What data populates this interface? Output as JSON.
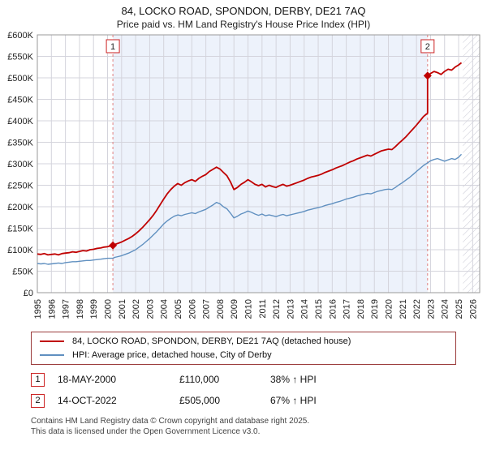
{
  "title": "84, LOCKO ROAD, SPONDON, DERBY, DE21 7AQ",
  "subtitle": "Price paid vs. HM Land Registry's House Price Index (HPI)",
  "colors": {
    "property": "#c00000",
    "hpi": "#6090c0",
    "marker_box_border": "#cc2222",
    "legend_border": "#9a3b3b",
    "shade": "#edf2fb",
    "grid": "#d4d4dc"
  },
  "legend": [
    {
      "label": "84, LOCKO ROAD, SPONDON, DERBY, DE21 7AQ (detached house)"
    },
    {
      "label": "HPI: Average price, detached house, City of Derby"
    }
  ],
  "transactions": [
    {
      "num": "1",
      "date": "18-MAY-2000",
      "price": "£110,000",
      "hpi": "38% ↑ HPI"
    },
    {
      "num": "2",
      "date": "14-OCT-2022",
      "price": "£505,000",
      "hpi": "67% ↑ HPI"
    }
  ],
  "footer": {
    "line1": "Contains HM Land Registry data © Crown copyright and database right 2025.",
    "line2": "This data is licensed under the Open Government Licence v3.0."
  },
  "chart_data": {
    "type": "line",
    "title": "84, LOCKO ROAD, SPONDON, DERBY, DE21 7AQ",
    "units": "GBP thousands",
    "xlim": [
      1995,
      2026.5
    ],
    "ylim": [
      0,
      600
    ],
    "grid": true,
    "legend_position": "bottom",
    "x_ticks": [
      "1995",
      "1996",
      "1997",
      "1998",
      "1999",
      "2000",
      "2001",
      "2002",
      "2003",
      "2004",
      "2005",
      "2006",
      "2007",
      "2008",
      "2009",
      "2010",
      "2011",
      "2012",
      "2013",
      "2014",
      "2015",
      "2016",
      "2017",
      "2018",
      "2019",
      "2020",
      "2021",
      "2022",
      "2023",
      "2024",
      "2025",
      "2026"
    ],
    "y_tick_values": [
      0,
      50,
      100,
      150,
      200,
      250,
      300,
      350,
      400,
      450,
      500,
      550,
      600
    ],
    "y_tick_labels": [
      "£0",
      "£50K",
      "£100K",
      "£150K",
      "£200K",
      "£250K",
      "£300K",
      "£350K",
      "£400K",
      "£450K",
      "£500K",
      "£550K",
      "£600K"
    ],
    "shaded_region": {
      "from": 2000.38,
      "to": 2022.79,
      "color": "#edf2fb"
    },
    "hatched_region": {
      "from": 2025.3,
      "to": 2026.5
    },
    "markers": [
      {
        "label": "1",
        "x": 2000.38,
        "y": 110
      },
      {
        "label": "2",
        "x": 2022.79,
        "y": 505
      }
    ],
    "series": [
      {
        "name": "84, LOCKO ROAD, SPONDON, DERBY, DE21 7AQ (detached house)",
        "color": "#c00000",
        "points": [
          [
            1995.0,
            90
          ],
          [
            1995.25,
            89
          ],
          [
            1995.5,
            91
          ],
          [
            1995.75,
            88
          ],
          [
            1996.0,
            89
          ],
          [
            1996.25,
            90
          ],
          [
            1996.5,
            88
          ],
          [
            1996.75,
            91
          ],
          [
            1997.0,
            92
          ],
          [
            1997.25,
            93
          ],
          [
            1997.5,
            95
          ],
          [
            1997.75,
            94
          ],
          [
            1998.0,
            96
          ],
          [
            1998.25,
            98
          ],
          [
            1998.5,
            97
          ],
          [
            1998.75,
            100
          ],
          [
            1999.0,
            101
          ],
          [
            1999.25,
            103
          ],
          [
            1999.5,
            104
          ],
          [
            1999.75,
            106
          ],
          [
            2000.0,
            107
          ],
          [
            2000.38,
            110
          ],
          [
            2000.5,
            112
          ],
          [
            2000.75,
            115
          ],
          [
            2001.0,
            118
          ],
          [
            2001.25,
            122
          ],
          [
            2001.5,
            126
          ],
          [
            2001.75,
            131
          ],
          [
            2002.0,
            137
          ],
          [
            2002.25,
            144
          ],
          [
            2002.5,
            152
          ],
          [
            2002.75,
            161
          ],
          [
            2003.0,
            170
          ],
          [
            2003.25,
            180
          ],
          [
            2003.5,
            192
          ],
          [
            2003.75,
            205
          ],
          [
            2004.0,
            218
          ],
          [
            2004.25,
            230
          ],
          [
            2004.5,
            240
          ],
          [
            2004.75,
            248
          ],
          [
            2005.0,
            254
          ],
          [
            2005.25,
            250
          ],
          [
            2005.5,
            256
          ],
          [
            2005.75,
            260
          ],
          [
            2006.0,
            263
          ],
          [
            2006.25,
            259
          ],
          [
            2006.5,
            266
          ],
          [
            2006.75,
            271
          ],
          [
            2007.0,
            275
          ],
          [
            2007.25,
            282
          ],
          [
            2007.5,
            287
          ],
          [
            2007.75,
            292
          ],
          [
            2008.0,
            288
          ],
          [
            2008.25,
            280
          ],
          [
            2008.5,
            272
          ],
          [
            2008.75,
            258
          ],
          [
            2009.0,
            240
          ],
          [
            2009.25,
            245
          ],
          [
            2009.5,
            252
          ],
          [
            2009.75,
            257
          ],
          [
            2010.0,
            263
          ],
          [
            2010.25,
            258
          ],
          [
            2010.5,
            252
          ],
          [
            2010.75,
            249
          ],
          [
            2011.0,
            252
          ],
          [
            2011.25,
            246
          ],
          [
            2011.5,
            250
          ],
          [
            2011.75,
            247
          ],
          [
            2012.0,
            245
          ],
          [
            2012.25,
            249
          ],
          [
            2012.5,
            252
          ],
          [
            2012.75,
            248
          ],
          [
            2013.0,
            250
          ],
          [
            2013.25,
            253
          ],
          [
            2013.5,
            256
          ],
          [
            2013.75,
            259
          ],
          [
            2014.0,
            262
          ],
          [
            2014.25,
            266
          ],
          [
            2014.5,
            269
          ],
          [
            2014.75,
            271
          ],
          [
            2015.0,
            273
          ],
          [
            2015.25,
            276
          ],
          [
            2015.5,
            280
          ],
          [
            2015.75,
            283
          ],
          [
            2016.0,
            286
          ],
          [
            2016.25,
            290
          ],
          [
            2016.5,
            293
          ],
          [
            2016.75,
            296
          ],
          [
            2017.0,
            300
          ],
          [
            2017.25,
            304
          ],
          [
            2017.5,
            307
          ],
          [
            2017.75,
            311
          ],
          [
            2018.0,
            314
          ],
          [
            2018.25,
            317
          ],
          [
            2018.5,
            320
          ],
          [
            2018.75,
            318
          ],
          [
            2019.0,
            322
          ],
          [
            2019.25,
            326
          ],
          [
            2019.5,
            330
          ],
          [
            2019.75,
            332
          ],
          [
            2020.0,
            334
          ],
          [
            2020.25,
            333
          ],
          [
            2020.5,
            340
          ],
          [
            2020.75,
            348
          ],
          [
            2021.0,
            355
          ],
          [
            2021.25,
            363
          ],
          [
            2021.5,
            372
          ],
          [
            2021.75,
            381
          ],
          [
            2022.0,
            390
          ],
          [
            2022.25,
            400
          ],
          [
            2022.5,
            410
          ],
          [
            2022.79,
            418
          ],
          [
            2022.79,
            505
          ],
          [
            2023.0,
            510
          ],
          [
            2023.25,
            515
          ],
          [
            2023.5,
            512
          ],
          [
            2023.75,
            508
          ],
          [
            2024.0,
            515
          ],
          [
            2024.25,
            520
          ],
          [
            2024.5,
            518
          ],
          [
            2024.75,
            525
          ],
          [
            2025.0,
            530
          ],
          [
            2025.2,
            535
          ]
        ]
      },
      {
        "name": "HPI: Average price, detached house, City of Derby",
        "color": "#6090c0",
        "points": [
          [
            1995.0,
            68
          ],
          [
            1995.25,
            67
          ],
          [
            1995.5,
            68
          ],
          [
            1995.75,
            66
          ],
          [
            1996.0,
            67
          ],
          [
            1996.25,
            68
          ],
          [
            1996.5,
            69
          ],
          [
            1996.75,
            68
          ],
          [
            1997.0,
            70
          ],
          [
            1997.25,
            71
          ],
          [
            1997.5,
            72
          ],
          [
            1997.75,
            72
          ],
          [
            1998.0,
            73
          ],
          [
            1998.25,
            74
          ],
          [
            1998.5,
            75
          ],
          [
            1998.75,
            75
          ],
          [
            1999.0,
            76
          ],
          [
            1999.25,
            77
          ],
          [
            1999.5,
            78
          ],
          [
            1999.75,
            79
          ],
          [
            2000.0,
            80
          ],
          [
            2000.38,
            80
          ],
          [
            2000.5,
            82
          ],
          [
            2000.75,
            84
          ],
          [
            2001.0,
            86
          ],
          [
            2001.25,
            89
          ],
          [
            2001.5,
            92
          ],
          [
            2001.75,
            96
          ],
          [
            2002.0,
            100
          ],
          [
            2002.25,
            106
          ],
          [
            2002.5,
            112
          ],
          [
            2002.75,
            119
          ],
          [
            2003.0,
            126
          ],
          [
            2003.25,
            134
          ],
          [
            2003.5,
            142
          ],
          [
            2003.75,
            151
          ],
          [
            2004.0,
            160
          ],
          [
            2004.25,
            167
          ],
          [
            2004.5,
            173
          ],
          [
            2004.75,
            178
          ],
          [
            2005.0,
            181
          ],
          [
            2005.25,
            179
          ],
          [
            2005.5,
            182
          ],
          [
            2005.75,
            184
          ],
          [
            2006.0,
            186
          ],
          [
            2006.25,
            184
          ],
          [
            2006.5,
            188
          ],
          [
            2006.75,
            191
          ],
          [
            2007.0,
            194
          ],
          [
            2007.25,
            199
          ],
          [
            2007.5,
            204
          ],
          [
            2007.75,
            210
          ],
          [
            2008.0,
            207
          ],
          [
            2008.25,
            200
          ],
          [
            2008.5,
            195
          ],
          [
            2008.75,
            185
          ],
          [
            2009.0,
            174
          ],
          [
            2009.25,
            178
          ],
          [
            2009.5,
            183
          ],
          [
            2009.75,
            186
          ],
          [
            2010.0,
            190
          ],
          [
            2010.25,
            187
          ],
          [
            2010.5,
            183
          ],
          [
            2010.75,
            180
          ],
          [
            2011.0,
            183
          ],
          [
            2011.25,
            179
          ],
          [
            2011.5,
            181
          ],
          [
            2011.75,
            179
          ],
          [
            2012.0,
            177
          ],
          [
            2012.25,
            180
          ],
          [
            2012.5,
            182
          ],
          [
            2012.75,
            179
          ],
          [
            2013.0,
            181
          ],
          [
            2013.25,
            183
          ],
          [
            2013.5,
            185
          ],
          [
            2013.75,
            187
          ],
          [
            2014.0,
            189
          ],
          [
            2014.25,
            192
          ],
          [
            2014.5,
            194
          ],
          [
            2014.75,
            196
          ],
          [
            2015.0,
            198
          ],
          [
            2015.25,
            200
          ],
          [
            2015.5,
            203
          ],
          [
            2015.75,
            205
          ],
          [
            2016.0,
            207
          ],
          [
            2016.25,
            210
          ],
          [
            2016.5,
            212
          ],
          [
            2016.75,
            215
          ],
          [
            2017.0,
            218
          ],
          [
            2017.25,
            220
          ],
          [
            2017.5,
            222
          ],
          [
            2017.75,
            225
          ],
          [
            2018.0,
            227
          ],
          [
            2018.25,
            229
          ],
          [
            2018.5,
            231
          ],
          [
            2018.75,
            230
          ],
          [
            2019.0,
            233
          ],
          [
            2019.25,
            236
          ],
          [
            2019.5,
            238
          ],
          [
            2019.75,
            240
          ],
          [
            2020.0,
            241
          ],
          [
            2020.25,
            240
          ],
          [
            2020.5,
            245
          ],
          [
            2020.75,
            251
          ],
          [
            2021.0,
            256
          ],
          [
            2021.25,
            262
          ],
          [
            2021.5,
            268
          ],
          [
            2021.75,
            275
          ],
          [
            2022.0,
            282
          ],
          [
            2022.25,
            289
          ],
          [
            2022.5,
            296
          ],
          [
            2022.79,
            302
          ],
          [
            2023.0,
            307
          ],
          [
            2023.25,
            310
          ],
          [
            2023.5,
            312
          ],
          [
            2023.75,
            309
          ],
          [
            2024.0,
            306
          ],
          [
            2024.25,
            309
          ],
          [
            2024.5,
            312
          ],
          [
            2024.75,
            310
          ],
          [
            2025.0,
            315
          ],
          [
            2025.2,
            322
          ]
        ]
      }
    ]
  }
}
